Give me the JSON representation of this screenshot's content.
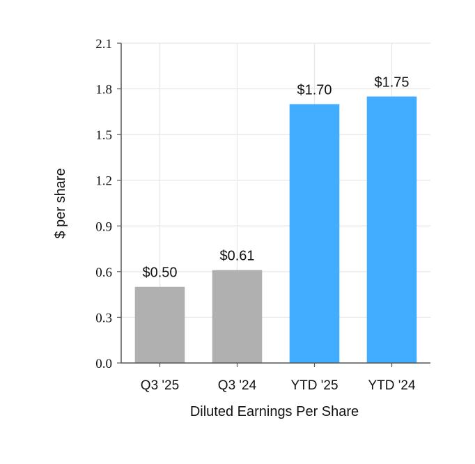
{
  "chart_data": {
    "type": "bar",
    "categories": [
      "Q3 '25",
      "Q3 '24",
      "YTD '25",
      "YTD '24"
    ],
    "values": [
      0.5,
      0.61,
      1.7,
      1.75
    ],
    "data_labels": [
      "$0.50",
      "$0.61",
      "$1.70",
      "$1.75"
    ],
    "bar_colors": [
      "#b0b0b0",
      "#b0b0b0",
      "#42adff",
      "#42adff"
    ],
    "xlabel": "Diluted Earnings Per Share",
    "ylabel": "$ per share",
    "ylim": [
      0,
      2.1
    ],
    "yticks": [
      "0.0",
      "0.3",
      "0.6",
      "0.9",
      "1.2",
      "1.5",
      "1.8",
      "2.1"
    ],
    "grid": true,
    "legend": "none"
  }
}
